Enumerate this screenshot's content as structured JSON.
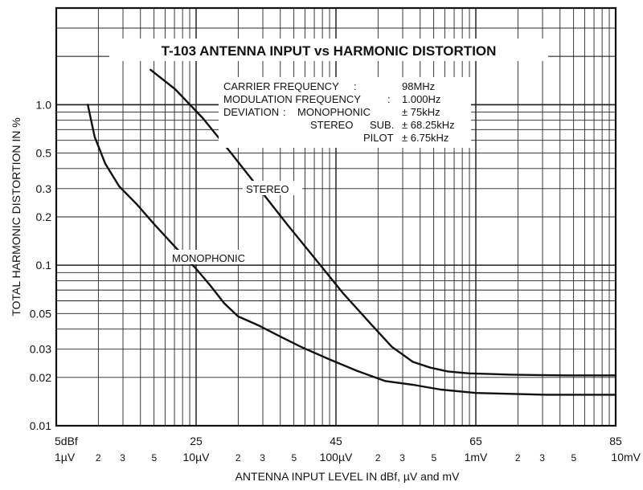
{
  "chart_data": {
    "type": "line",
    "title": "T-103 ANTENNA INPUT vs HARMONIC DISTORTION",
    "xlabel": "ANTENNA INPUT LEVEL IN dBf, µV and mV",
    "ylabel": "TOTAL HARMONIC DISTORTION IN %",
    "x_scale": "log",
    "y_scale": "log",
    "xlim_dbf": [
      5,
      85
    ],
    "ylim": [
      0.01,
      4
    ],
    "grid": true,
    "x_tick_labels_dbf": [
      {
        "value": 5,
        "label": "5dBf"
      },
      {
        "value": 25,
        "label": "25"
      },
      {
        "value": 45,
        "label": "45"
      },
      {
        "value": 65,
        "label": "65"
      },
      {
        "value": 85,
        "label": "85"
      }
    ],
    "x_tick_labels_voltage": [
      {
        "dbf": 5,
        "label": "1µV"
      },
      {
        "dbf": 11,
        "label": "2"
      },
      {
        "dbf": 14.5,
        "label": "3"
      },
      {
        "dbf": 19,
        "label": "5"
      },
      {
        "dbf": 25,
        "label": "10µV"
      },
      {
        "dbf": 31,
        "label": "2"
      },
      {
        "dbf": 34.5,
        "label": "3"
      },
      {
        "dbf": 39,
        "label": "5"
      },
      {
        "dbf": 45,
        "label": "100µV"
      },
      {
        "dbf": 51,
        "label": "2"
      },
      {
        "dbf": 54.5,
        "label": "3"
      },
      {
        "dbf": 59,
        "label": "5"
      },
      {
        "dbf": 65,
        "label": "1mV"
      },
      {
        "dbf": 71,
        "label": "2"
      },
      {
        "dbf": 74.5,
        "label": "3"
      },
      {
        "dbf": 79,
        "label": "5"
      },
      {
        "dbf": 85,
        "label": "10mV"
      }
    ],
    "y_tick_labels": [
      {
        "value": 1.0,
        "label": "1.0"
      },
      {
        "value": 0.5,
        "label": "0.5"
      },
      {
        "value": 0.3,
        "label": "0.3"
      },
      {
        "value": 0.2,
        "label": "0.2"
      },
      {
        "value": 0.1,
        "label": "0.1"
      },
      {
        "value": 0.05,
        "label": "0.05"
      },
      {
        "value": 0.03,
        "label": "0.03"
      },
      {
        "value": 0.02,
        "label": "0.02"
      },
      {
        "value": 0.01,
        "label": "0.01"
      }
    ],
    "series": [
      {
        "name": "MONOPHONIC",
        "x_dbf": [
          9.5,
          10.5,
          12,
          14,
          16.5,
          19,
          22,
          25,
          27,
          29,
          31,
          34,
          37,
          40,
          44,
          48,
          52,
          56,
          60,
          65,
          70,
          75,
          80,
          85
        ],
        "y": [
          1.0,
          0.63,
          0.43,
          0.31,
          0.24,
          0.18,
          0.13,
          0.095,
          0.075,
          0.058,
          0.048,
          0.042,
          0.036,
          0.031,
          0.026,
          0.022,
          0.019,
          0.018,
          0.0168,
          0.016,
          0.0158,
          0.0156,
          0.0156,
          0.0156
        ]
      },
      {
        "name": "STEREO",
        "x_dbf": [
          18.5,
          22,
          26,
          30,
          34,
          38,
          42,
          46,
          50,
          53,
          56,
          58.5,
          61,
          64,
          67,
          70,
          74,
          78,
          82,
          85
        ],
        "y": [
          1.65,
          1.25,
          0.82,
          0.5,
          0.3,
          0.18,
          0.11,
          0.067,
          0.043,
          0.031,
          0.025,
          0.023,
          0.0218,
          0.0212,
          0.021,
          0.0208,
          0.0207,
          0.0206,
          0.0206,
          0.0206
        ]
      }
    ],
    "annotations": {
      "carrier_label": "CARRIER FREQUENCY",
      "carrier_colon": ":",
      "carrier_value": "98MHz",
      "mod_label": "MODULATION FREQUENCY",
      "mod_colon": ":",
      "mod_value": "1.000Hz",
      "dev_label": "DEVIATION",
      "dev_colon": ":",
      "dev_mono_label": "MONOPHONIC",
      "dev_mono_value": "± 75kHz",
      "dev_stereo_label": "STEREO",
      "dev_sub_label": "SUB.",
      "dev_sub_value": "± 68.25kHz",
      "dev_pilot_label": "PILOT",
      "dev_pilot_value": "± 6.75kHz"
    }
  }
}
